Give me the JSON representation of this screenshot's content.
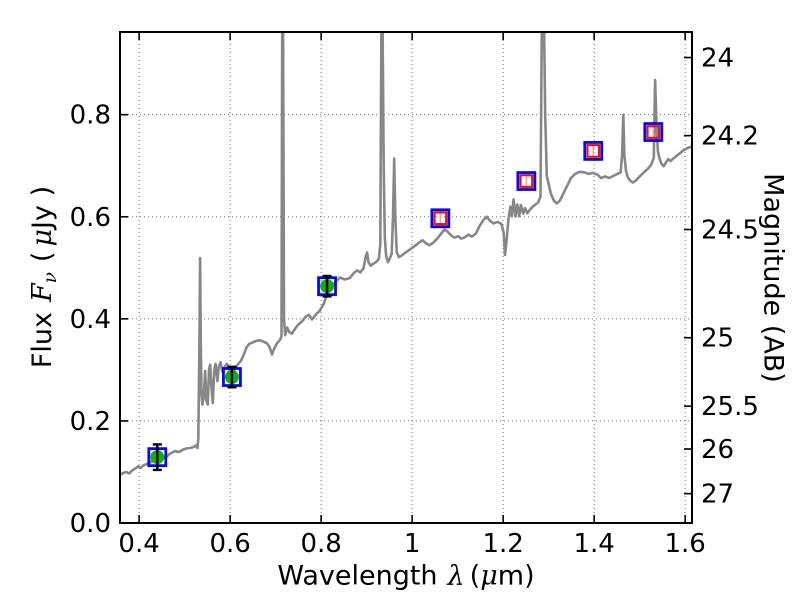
{
  "figure_title": "",
  "labels": {
    "xlabel": {
      "prefix": "Wavelength",
      "symbol": "λ",
      "unit_open": "(",
      "unit_mu": "μ",
      "unit_rest": "m)"
    },
    "ylabel_left": {
      "prefix": "Flux",
      "symbol": "F",
      "subscript": "ν",
      "unit_open": "(",
      "unit_mu": "μ",
      "unit_rest": "Jy )"
    },
    "ylabel_right": "Magnitude (AB)"
  },
  "chart_data": {
    "type": "line",
    "title": "",
    "xlabel": "Wavelength λ (μm)",
    "ylabel": "Flux Fν ( μJy )",
    "ylabel_right": "Magnitude (AB)",
    "xlim": [
      0.358,
      1.615
    ],
    "ylim": [
      0,
      0.962
    ],
    "grid": true,
    "grid_style": "dotted",
    "legend": "none",
    "xticks": {
      "values": [
        0.4,
        0.6,
        0.8,
        1.0,
        1.2,
        1.4,
        1.6
      ],
      "labels": [
        "0.4",
        "0.6",
        "0.8",
        "1",
        "1.2",
        "1.4",
        "1.6"
      ]
    },
    "yticks_left": {
      "values": [
        0.0,
        0.2,
        0.4,
        0.6,
        0.8
      ],
      "labels": [
        "0.0",
        "0.2",
        "0.4",
        "0.6",
        "0.8"
      ]
    },
    "yticks_right": {
      "note": "AB magnitudes mapped to flux via m = 23.9 - 2.5*log10(F_uJy)",
      "labels": [
        "24",
        "24.2",
        "24.5",
        "25",
        "25.5",
        "26",
        "27"
      ],
      "flux_values": [
        0.912,
        0.759,
        0.575,
        0.363,
        0.229,
        0.145,
        0.0575
      ]
    },
    "colors": {
      "spectrum": "#878787",
      "blue_square": "#0a0ae8",
      "green_fill": "#14ab14",
      "red_square": "#ee1010",
      "black_errorbar": "#000000",
      "pink_errorbar": "#ffa0a0",
      "grid": "#707070",
      "frame": "#000000"
    },
    "series": [
      {
        "name": "model-spectrum",
        "kind": "line",
        "points": [
          [
            0.358,
            0.094
          ],
          [
            0.365,
            0.098
          ],
          [
            0.372,
            0.1
          ],
          [
            0.378,
            0.097
          ],
          [
            0.385,
            0.103
          ],
          [
            0.392,
            0.107
          ],
          [
            0.398,
            0.111
          ],
          [
            0.403,
            0.108
          ],
          [
            0.41,
            0.113
          ],
          [
            0.418,
            0.116
          ],
          [
            0.425,
            0.119
          ],
          [
            0.432,
            0.124
          ],
          [
            0.438,
            0.128
          ],
          [
            0.445,
            0.131
          ],
          [
            0.452,
            0.13
          ],
          [
            0.458,
            0.127
          ],
          [
            0.465,
            0.134
          ],
          [
            0.472,
            0.138
          ],
          [
            0.48,
            0.141
          ],
          [
            0.487,
            0.139
          ],
          [
            0.495,
            0.143
          ],
          [
            0.503,
            0.146
          ],
          [
            0.512,
            0.147
          ],
          [
            0.52,
            0.149
          ],
          [
            0.525,
            0.152
          ],
          [
            0.528,
            0.147
          ],
          [
            0.53,
            0.165
          ],
          [
            0.5325,
            0.35
          ],
          [
            0.534,
            0.519
          ],
          [
            0.5355,
            0.35
          ],
          [
            0.537,
            0.25
          ],
          [
            0.539,
            0.232
          ],
          [
            0.542,
            0.245
          ],
          [
            0.545,
            0.298
          ],
          [
            0.548,
            0.24
          ],
          [
            0.551,
            0.232
          ],
          [
            0.5535,
            0.3
          ],
          [
            0.556,
            0.31
          ],
          [
            0.559,
            0.265
          ],
          [
            0.562,
            0.235
          ],
          [
            0.565,
            0.298
          ],
          [
            0.568,
            0.312
          ],
          [
            0.572,
            0.278
          ],
          [
            0.575,
            0.305
          ],
          [
            0.579,
            0.315
          ],
          [
            0.583,
            0.296
          ],
          [
            0.588,
            0.306
          ],
          [
            0.593,
            0.312
          ],
          [
            0.598,
            0.302
          ],
          [
            0.603,
            0.29
          ],
          [
            0.608,
            0.298
          ],
          [
            0.613,
            0.306
          ],
          [
            0.618,
            0.312
          ],
          [
            0.624,
            0.318
          ],
          [
            0.63,
            0.33
          ],
          [
            0.636,
            0.344
          ],
          [
            0.642,
            0.351
          ],
          [
            0.65,
            0.354
          ],
          [
            0.658,
            0.357
          ],
          [
            0.666,
            0.358
          ],
          [
            0.674,
            0.355
          ],
          [
            0.681,
            0.352
          ],
          [
            0.687,
            0.344
          ],
          [
            0.692,
            0.33
          ],
          [
            0.697,
            0.342
          ],
          [
            0.703,
            0.352
          ],
          [
            0.709,
            0.358
          ],
          [
            0.713,
            0.365
          ],
          [
            0.7145,
            0.97
          ],
          [
            0.7165,
            0.97
          ],
          [
            0.7185,
            0.4
          ],
          [
            0.721,
            0.368
          ],
          [
            0.725,
            0.383
          ],
          [
            0.73,
            0.374
          ],
          [
            0.736,
            0.371
          ],
          [
            0.743,
            0.381
          ],
          [
            0.75,
            0.389
          ],
          [
            0.758,
            0.395
          ],
          [
            0.766,
            0.404
          ],
          [
            0.773,
            0.408
          ],
          [
            0.78,
            0.399
          ],
          [
            0.789,
            0.409
          ],
          [
            0.797,
            0.416
          ],
          [
            0.806,
            0.43
          ],
          [
            0.813,
            0.448
          ],
          [
            0.821,
            0.461
          ],
          [
            0.83,
            0.471
          ],
          [
            0.841,
            0.481
          ],
          [
            0.852,
            0.477
          ],
          [
            0.863,
            0.48
          ],
          [
            0.872,
            0.49
          ],
          [
            0.879,
            0.495
          ],
          [
            0.886,
            0.491
          ],
          [
            0.893,
            0.499
          ],
          [
            0.898,
            0.522
          ],
          [
            0.901,
            0.53
          ],
          [
            0.904,
            0.511
          ],
          [
            0.909,
            0.504
          ],
          [
            0.916,
            0.509
          ],
          [
            0.922,
            0.512
          ],
          [
            0.927,
            0.518
          ],
          [
            0.93,
            0.545
          ],
          [
            0.9325,
            0.97
          ],
          [
            0.935,
            0.97
          ],
          [
            0.9375,
            0.7
          ],
          [
            0.94,
            0.56
          ],
          [
            0.943,
            0.522
          ],
          [
            0.947,
            0.511
          ],
          [
            0.951,
            0.518
          ],
          [
            0.955,
            0.528
          ],
          [
            0.958,
            0.6
          ],
          [
            0.9605,
            0.714
          ],
          [
            0.963,
            0.6
          ],
          [
            0.966,
            0.531
          ],
          [
            0.971,
            0.521
          ],
          [
            0.977,
            0.524
          ],
          [
            0.984,
            0.529
          ],
          [
            0.992,
            0.534
          ],
          [
            1.0,
            0.539
          ],
          [
            1.008,
            0.544
          ],
          [
            1.016,
            0.55
          ],
          [
            1.023,
            0.554
          ],
          [
            1.03,
            0.548
          ],
          [
            1.038,
            0.544
          ],
          [
            1.046,
            0.549
          ],
          [
            1.055,
            0.557
          ],
          [
            1.063,
            0.566
          ],
          [
            1.071,
            0.575
          ],
          [
            1.078,
            0.571
          ],
          [
            1.085,
            0.564
          ],
          [
            1.093,
            0.559
          ],
          [
            1.101,
            0.562
          ],
          [
            1.108,
            0.557
          ],
          [
            1.116,
            0.56
          ],
          [
            1.124,
            0.565
          ],
          [
            1.131,
            0.561
          ],
          [
            1.14,
            0.567
          ],
          [
            1.149,
            0.583
          ],
          [
            1.157,
            0.594
          ],
          [
            1.164,
            0.6
          ],
          [
            1.171,
            0.592
          ],
          [
            1.179,
            0.587
          ],
          [
            1.188,
            0.59
          ],
          [
            1.196,
            0.586
          ],
          [
            1.201,
            0.57
          ],
          [
            1.204,
            0.525
          ],
          [
            1.208,
            0.558
          ],
          [
            1.212,
            0.598
          ],
          [
            1.216,
            0.62
          ],
          [
            1.219,
            0.601
          ],
          [
            1.223,
            0.634
          ],
          [
            1.227,
            0.601
          ],
          [
            1.231,
            0.624
          ],
          [
            1.235,
            0.601
          ],
          [
            1.239,
            0.623
          ],
          [
            1.244,
            0.606
          ],
          [
            1.248,
            0.617
          ],
          [
            1.253,
            0.607
          ],
          [
            1.259,
            0.614
          ],
          [
            1.265,
            0.62
          ],
          [
            1.271,
            0.624
          ],
          [
            1.277,
            0.628
          ],
          [
            1.282,
            0.64
          ],
          [
            1.285,
            0.97
          ],
          [
            1.29,
            0.97
          ],
          [
            1.2925,
            0.8
          ],
          [
            1.296,
            0.68
          ],
          [
            1.3,
            0.664
          ],
          [
            1.305,
            0.645
          ],
          [
            1.311,
            0.632
          ],
          [
            1.318,
            0.626
          ],
          [
            1.325,
            0.632
          ],
          [
            1.333,
            0.647
          ],
          [
            1.341,
            0.661
          ],
          [
            1.349,
            0.676
          ],
          [
            1.358,
            0.684
          ],
          [
            1.368,
            0.688
          ],
          [
            1.378,
            0.687
          ],
          [
            1.388,
            0.684
          ],
          [
            1.398,
            0.686
          ],
          [
            1.408,
            0.682
          ],
          [
            1.415,
            0.676
          ],
          [
            1.424,
            0.679
          ],
          [
            1.433,
            0.676
          ],
          [
            1.442,
            0.68
          ],
          [
            1.451,
            0.684
          ],
          [
            1.458,
            0.687
          ],
          [
            1.4615,
            0.72
          ],
          [
            1.464,
            0.8
          ],
          [
            1.4665,
            0.72
          ],
          [
            1.47,
            0.69
          ],
          [
            1.474,
            0.677
          ],
          [
            1.479,
            0.671
          ],
          [
            1.485,
            0.667
          ],
          [
            1.492,
            0.671
          ],
          [
            1.5,
            0.679
          ],
          [
            1.509,
            0.687
          ],
          [
            1.518,
            0.694
          ],
          [
            1.526,
            0.703
          ],
          [
            1.531,
            0.716
          ],
          [
            1.534,
            0.868
          ],
          [
            1.5375,
            0.77
          ],
          [
            1.54,
            0.728
          ],
          [
            1.544,
            0.713
          ],
          [
            1.548,
            0.704
          ],
          [
            1.553,
            0.699
          ],
          [
            1.558,
            0.707
          ],
          [
            1.563,
            0.713
          ],
          [
            1.568,
            0.709
          ],
          [
            1.574,
            0.714
          ],
          [
            1.581,
            0.719
          ],
          [
            1.589,
            0.725
          ],
          [
            1.597,
            0.731
          ],
          [
            1.606,
            0.735
          ],
          [
            1.615,
            0.738
          ]
        ]
      },
      {
        "name": "observed-photometry",
        "kind": "scatter",
        "marker": "blue-open-square + green-filled-circle + black-errorbar",
        "points": [
          {
            "x": 0.44,
            "y": 0.129,
            "yerr": 0.025
          },
          {
            "x": 0.604,
            "y": 0.286,
            "yerr": 0.02
          },
          {
            "x": 0.813,
            "y": 0.464,
            "yerr": 0.02
          }
        ]
      },
      {
        "name": "model-photometry",
        "kind": "scatter",
        "marker": "blue-open-square + red-open-square + pink-errorbar",
        "points": [
          {
            "x": 1.062,
            "y": 0.597,
            "yerr": 0.013
          },
          {
            "x": 1.251,
            "y": 0.67,
            "yerr": 0.013
          },
          {
            "x": 1.398,
            "y": 0.729,
            "yerr": 0.013
          },
          {
            "x": 1.53,
            "y": 0.766,
            "yerr": 0.013
          }
        ]
      }
    ]
  }
}
